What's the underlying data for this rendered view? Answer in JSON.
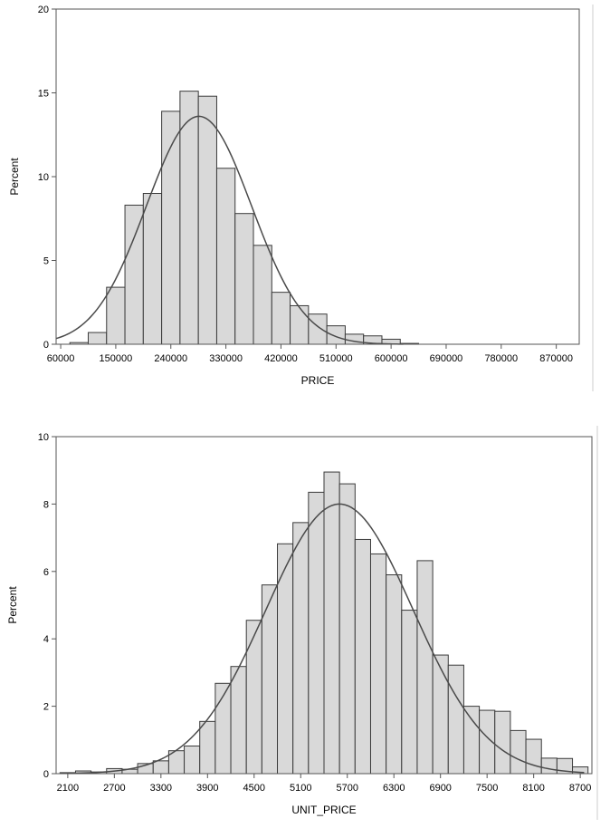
{
  "chart_data": [
    {
      "type": "bar",
      "subtype": "histogram",
      "xlabel": "PRICE",
      "ylabel": "Percent",
      "ylim": [
        0,
        20
      ],
      "yticks": [
        "0",
        "5",
        "10",
        "15",
        "20"
      ],
      "xlim": [
        52500,
        907500
      ],
      "bin_width": 30000,
      "xticks": [
        "60000",
        "150000",
        "240000",
        "330000",
        "420000",
        "510000",
        "600000",
        "690000",
        "780000",
        "870000"
      ],
      "bins": [
        {
          "center": 90000,
          "value": 0.1
        },
        {
          "center": 120000,
          "value": 0.7
        },
        {
          "center": 150000,
          "value": 3.4
        },
        {
          "center": 180000,
          "value": 8.3
        },
        {
          "center": 210000,
          "value": 9.0
        },
        {
          "center": 240000,
          "value": 13.9
        },
        {
          "center": 270000,
          "value": 15.1
        },
        {
          "center": 300000,
          "value": 14.8
        },
        {
          "center": 330000,
          "value": 10.5
        },
        {
          "center": 360000,
          "value": 7.8
        },
        {
          "center": 390000,
          "value": 5.9
        },
        {
          "center": 420000,
          "value": 3.1
        },
        {
          "center": 450000,
          "value": 2.3
        },
        {
          "center": 480000,
          "value": 1.8
        },
        {
          "center": 510000,
          "value": 1.1
        },
        {
          "center": 540000,
          "value": 0.6
        },
        {
          "center": 570000,
          "value": 0.5
        },
        {
          "center": 600000,
          "value": 0.3
        },
        {
          "center": 630000,
          "value": 0.05
        }
      ],
      "curve": {
        "type": "normal",
        "mean": 286000,
        "peak": 13.6,
        "sd": 86000,
        "x_start": 52500,
        "x_end": 620000
      }
    },
    {
      "type": "bar",
      "subtype": "histogram",
      "xlabel": "UNIT_PRICE",
      "ylabel": "Percent",
      "ylim": [
        0,
        10
      ],
      "yticks": [
        "0",
        "2",
        "4",
        "6",
        "8",
        "10"
      ],
      "xlim": [
        1950,
        8850
      ],
      "bin_width": 200,
      "xticks": [
        "2100",
        "2700",
        "3300",
        "3900",
        "4500",
        "5100",
        "5700",
        "6300",
        "6900",
        "7500",
        "8100",
        "8700"
      ],
      "bins": [
        {
          "center": 2100,
          "value": 0.03
        },
        {
          "center": 2300,
          "value": 0.08
        },
        {
          "center": 2500,
          "value": 0.05
        },
        {
          "center": 2700,
          "value": 0.15
        },
        {
          "center": 2900,
          "value": 0.13
        },
        {
          "center": 3100,
          "value": 0.3
        },
        {
          "center": 3300,
          "value": 0.38
        },
        {
          "center": 3500,
          "value": 0.68
        },
        {
          "center": 3700,
          "value": 0.82
        },
        {
          "center": 3900,
          "value": 1.55
        },
        {
          "center": 4100,
          "value": 2.68
        },
        {
          "center": 4300,
          "value": 3.18
        },
        {
          "center": 4500,
          "value": 4.55
        },
        {
          "center": 4700,
          "value": 5.6
        },
        {
          "center": 4900,
          "value": 6.82
        },
        {
          "center": 5100,
          "value": 7.45
        },
        {
          "center": 5300,
          "value": 8.35
        },
        {
          "center": 5500,
          "value": 8.95
        },
        {
          "center": 5700,
          "value": 8.6
        },
        {
          "center": 5900,
          "value": 6.95
        },
        {
          "center": 6100,
          "value": 6.52
        },
        {
          "center": 6300,
          "value": 5.9
        },
        {
          "center": 6500,
          "value": 4.85
        },
        {
          "center": 6700,
          "value": 6.32
        },
        {
          "center": 6900,
          "value": 3.52
        },
        {
          "center": 7100,
          "value": 3.22
        },
        {
          "center": 7300,
          "value": 2.0
        },
        {
          "center": 7500,
          "value": 1.88
        },
        {
          "center": 7700,
          "value": 1.85
        },
        {
          "center": 7900,
          "value": 1.28
        },
        {
          "center": 8100,
          "value": 1.02
        },
        {
          "center": 8300,
          "value": 0.46
        },
        {
          "center": 8500,
          "value": 0.45
        },
        {
          "center": 8700,
          "value": 0.2
        }
      ],
      "curve": {
        "type": "normal",
        "mean": 5600,
        "peak": 8.0,
        "sd": 950,
        "x_start": 2000,
        "x_end": 8750
      }
    }
  ]
}
